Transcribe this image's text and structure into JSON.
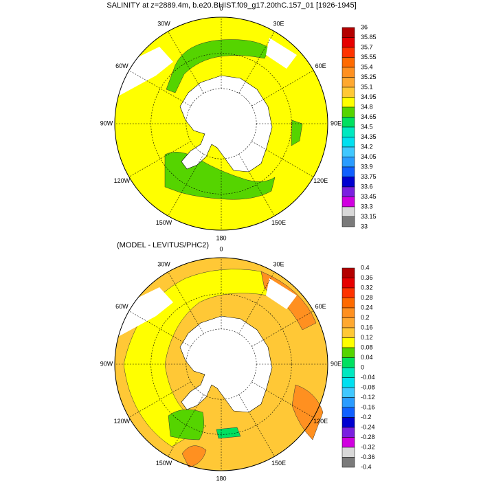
{
  "maps": [
    {
      "title": "SALINITY at z=2889.4m, b.e20.BHIST.f09_g17.20thC.157_01 [1926-1945]",
      "lon_labels": [
        "0",
        "30E",
        "60E",
        "90E",
        "120E",
        "150E",
        "180",
        "150W",
        "120W",
        "90W",
        "60W",
        "30W"
      ],
      "colorbar": {
        "labels": [
          "36",
          "35.85",
          "35.7",
          "35.55",
          "35.4",
          "35.25",
          "35.1",
          "34.95",
          "34.8",
          "34.65",
          "34.5",
          "34.35",
          "34.2",
          "34.05",
          "33.9",
          "33.75",
          "33.6",
          "33.45",
          "33.3",
          "33.15",
          "33"
        ],
        "colors": [
          "#b30000",
          "#e60000",
          "#ff3300",
          "#ff6a00",
          "#ff9020",
          "#ffa830",
          "#ffc836",
          "#ffff00",
          "#55d400",
          "#00e060",
          "#00e8c0",
          "#00e0f0",
          "#40c8ff",
          "#2a9cff",
          "#1060ff",
          "#0000d0",
          "#7a20e0",
          "#d000e0",
          "#d8d8d8",
          "#7a7a7a"
        ]
      }
    },
    {
      "title": "(MODEL - LEVITUS/PHC2)",
      "lon_labels": [
        "0",
        "30E",
        "60E",
        "90E",
        "120E",
        "150E",
        "180",
        "150W",
        "120W",
        "90W",
        "60W",
        "30W"
      ],
      "colorbar": {
        "labels": [
          "0.4",
          "0.36",
          "0.32",
          "0.28",
          "0.24",
          "0.2",
          "0.16",
          "0.12",
          "0.08",
          "0.04",
          "0",
          "-0.04",
          "-0.08",
          "-0.12",
          "-0.16",
          "-0.2",
          "-0.24",
          "-0.28",
          "-0.32",
          "-0.36",
          "-0.4"
        ],
        "colors": [
          "#b30000",
          "#e60000",
          "#ff3300",
          "#ff6a00",
          "#ff9020",
          "#ffa830",
          "#ffc836",
          "#ffff00",
          "#55d400",
          "#00e060",
          "#00e8c0",
          "#00e0f0",
          "#40c8ff",
          "#2a9cff",
          "#1060ff",
          "#0000d0",
          "#7a20e0",
          "#d000e0",
          "#d8d8d8",
          "#7a7a7a"
        ]
      }
    }
  ]
}
